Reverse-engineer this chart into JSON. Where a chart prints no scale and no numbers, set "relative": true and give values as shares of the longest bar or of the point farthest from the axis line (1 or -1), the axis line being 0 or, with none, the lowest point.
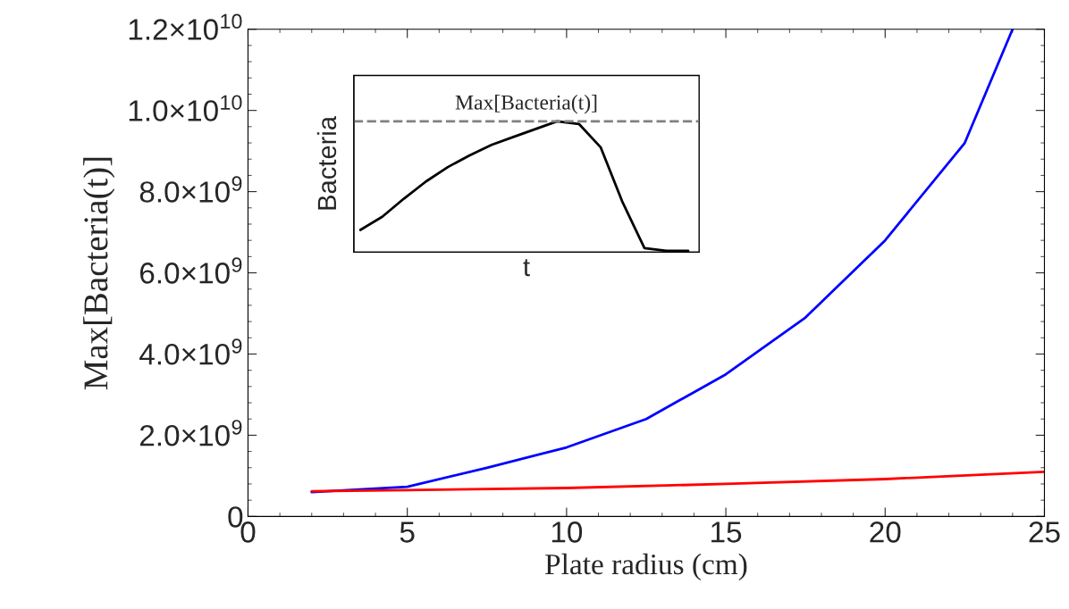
{
  "chart_data": [
    {
      "type": "line",
      "xlabel": "Plate radius (cm)",
      "ylabel": "Max[Bacteria(t)]",
      "xlim": [
        0,
        25
      ],
      "xticks": [
        0,
        5,
        10,
        15,
        20,
        25
      ],
      "ylim": [
        0,
        12000000000
      ],
      "yticks": [
        0,
        {
          "value": 2000000000,
          "label": "2.0×10$^{9}$"
        },
        {
          "value": 4000000000,
          "label": "4.0×10$^{9}$"
        },
        {
          "value": 6000000000,
          "label": "6.0×10$^{9}$"
        },
        {
          "value": 8000000000,
          "label": "8.0×10$^{9}$"
        },
        {
          "value": 10000000000,
          "label": "1.0×10$^{10}$"
        },
        {
          "value": 12000000000,
          "label": "1.2×10$^{10}$"
        }
      ],
      "x": [
        2,
        5,
        7.5,
        10,
        12.5,
        15,
        17.5,
        20,
        22.5,
        24
      ],
      "series": [
        {
          "color": "#0000ff",
          "values": [
            600000000,
            730000000,
            1200000000,
            1700000000,
            2400000000,
            3500000000,
            4900000000,
            6800000000,
            9200000000,
            12000000000
          ]
        },
        {
          "color": "#ff0000",
          "x": [
            2,
            5,
            10,
            15,
            20,
            25
          ],
          "values": [
            620000000,
            650000000,
            700000000,
            800000000,
            920000000,
            1100000000
          ]
        }
      ]
    },
    {
      "type": "line",
      "relative": true,
      "xlabel": "t",
      "ylabel": "Bacteria",
      "categories": [
        null,
        null,
        null,
        null,
        null,
        null,
        null,
        null,
        null,
        null,
        null,
        null,
        null,
        null,
        null,
        null
      ],
      "series": [
        {
          "color": "#000000",
          "values": [
            0.17,
            0.27,
            0.41,
            0.54,
            0.65,
            0.74,
            0.82,
            0.88,
            0.94,
            1.0,
            0.98,
            0.8,
            0.38,
            0.03,
            0.01,
            0.01
          ]
        }
      ],
      "ref_lines": [
        {
          "axis": "y",
          "value": 1,
          "label": "Max[Bacteria(t)]",
          "color": "#808080",
          "line_style": "dashed"
        }
      ]
    }
  ]
}
